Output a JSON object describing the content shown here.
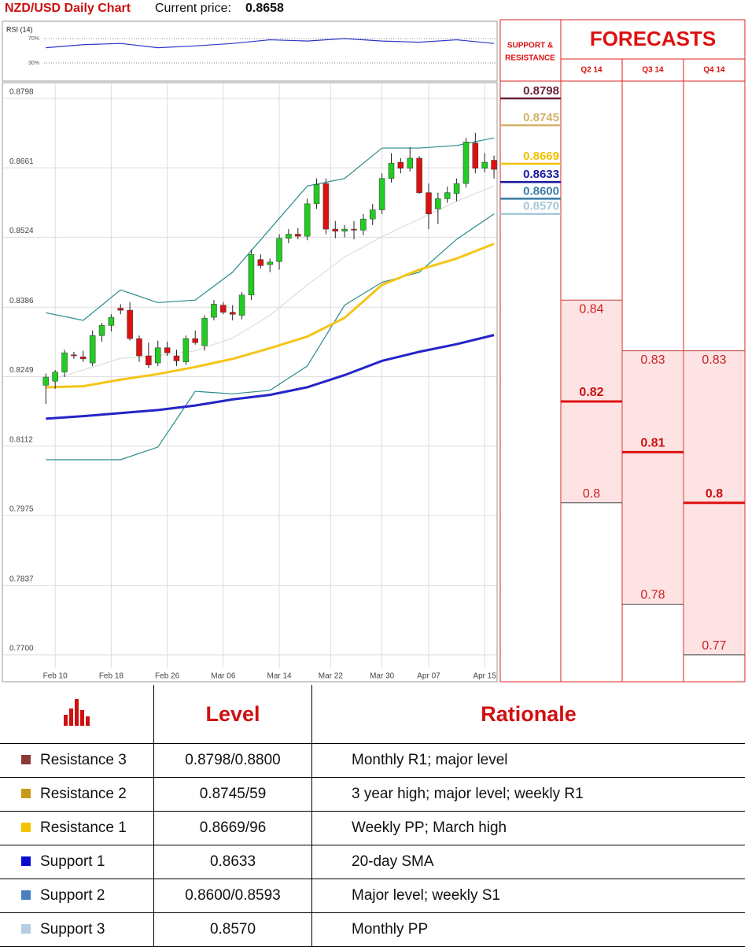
{
  "header": {
    "title": "NZD/USD Daily Chart",
    "price_label": "Current price:",
    "price": 0.8658
  },
  "chart_data": [
    {
      "type": "line",
      "title": "RSI (14)",
      "color": "#2a35c8",
      "x": [
        0,
        4,
        8,
        12,
        16,
        20,
        24,
        28,
        32,
        36,
        40,
        44,
        48
      ],
      "values": [
        55,
        60,
        62,
        55,
        58,
        62,
        68,
        66,
        70,
        66,
        64,
        68,
        62
      ],
      "xlim": [
        -0.7,
        48.5
      ],
      "ylim": [
        10,
        90
      ],
      "yticks": [
        {
          "value": 70,
          "label": "70%"
        },
        {
          "value": 30,
          "label": "30%"
        }
      ],
      "grid": true
    },
    {
      "type": "candlestick",
      "up_color": "#22cc22",
      "down_color": "#dd1111",
      "x": [
        0,
        1,
        2,
        3,
        4,
        5,
        6,
        7,
        8,
        9,
        10,
        11,
        12,
        13,
        14,
        15,
        16,
        17,
        18,
        19,
        20,
        21,
        22,
        23,
        24,
        25,
        26,
        27,
        28,
        29,
        30,
        31,
        32,
        33,
        34,
        35,
        36,
        37,
        38,
        39,
        40,
        41,
        42,
        43,
        44,
        45,
        46,
        47,
        48
      ],
      "open": [
        0.8232,
        0.824,
        0.8258,
        0.8292,
        0.8288,
        0.8276,
        0.833,
        0.835,
        0.8384,
        0.838,
        0.8324,
        0.829,
        0.8276,
        0.8306,
        0.829,
        0.8278,
        0.8324,
        0.831,
        0.8366,
        0.839,
        0.8376,
        0.837,
        0.841,
        0.848,
        0.847,
        0.8476,
        0.8522,
        0.853,
        0.8526,
        0.859,
        0.863,
        0.854,
        0.8536,
        0.854,
        0.8538,
        0.856,
        0.8578,
        0.864,
        0.8672,
        0.866,
        0.868,
        0.8612,
        0.858,
        0.86,
        0.861,
        0.863,
        0.871,
        0.866,
        0.8676
      ],
      "high": [
        0.8255,
        0.8262,
        0.8302,
        0.8298,
        0.83,
        0.834,
        0.8355,
        0.8372,
        0.8392,
        0.8396,
        0.833,
        0.8316,
        0.832,
        0.8318,
        0.8302,
        0.833,
        0.834,
        0.837,
        0.84,
        0.8396,
        0.839,
        0.8416,
        0.85,
        0.849,
        0.8482,
        0.853,
        0.854,
        0.8542,
        0.86,
        0.864,
        0.864,
        0.8556,
        0.8548,
        0.8556,
        0.857,
        0.859,
        0.865,
        0.869,
        0.868,
        0.8702,
        0.8684,
        0.863,
        0.8612,
        0.8624,
        0.864,
        0.872,
        0.873,
        0.869,
        0.8685
      ],
      "low": [
        0.8195,
        0.8225,
        0.8248,
        0.8284,
        0.8278,
        0.827,
        0.8318,
        0.8338,
        0.8372,
        0.832,
        0.8278,
        0.8266,
        0.827,
        0.829,
        0.827,
        0.8272,
        0.8312,
        0.83,
        0.836,
        0.8372,
        0.836,
        0.8362,
        0.84,
        0.8462,
        0.8455,
        0.846,
        0.8512,
        0.852,
        0.8518,
        0.858,
        0.853,
        0.8522,
        0.8524,
        0.852,
        0.8528,
        0.8548,
        0.857,
        0.8632,
        0.865,
        0.8654,
        0.861,
        0.854,
        0.855,
        0.8592,
        0.8595,
        0.8622,
        0.865,
        0.8652,
        0.864
      ],
      "close": [
        0.8248,
        0.8258,
        0.8296,
        0.829,
        0.8284,
        0.833,
        0.835,
        0.8366,
        0.838,
        0.8324,
        0.829,
        0.8272,
        0.8306,
        0.8296,
        0.828,
        0.8324,
        0.8316,
        0.8364,
        0.8392,
        0.8376,
        0.8372,
        0.841,
        0.849,
        0.8468,
        0.8475,
        0.8522,
        0.853,
        0.8526,
        0.859,
        0.8628,
        0.854,
        0.8536,
        0.854,
        0.8538,
        0.856,
        0.8578,
        0.864,
        0.867,
        0.866,
        0.868,
        0.8612,
        0.857,
        0.86,
        0.8612,
        0.863,
        0.8712,
        0.866,
        0.8672,
        0.8658
      ],
      "line_x": [
        0,
        4,
        8,
        12,
        16,
        20,
        24,
        28,
        32,
        36,
        40,
        44,
        48
      ],
      "lines": [
        {
          "color": "#2a8a8a",
          "values": [
            0.8375,
            0.836,
            0.842,
            0.8395,
            0.84,
            0.8455,
            0.854,
            0.8625,
            0.864,
            0.87,
            0.87,
            0.8705,
            0.872
          ]
        },
        {
          "color": "#2a8a8a",
          "values": [
            0.8085,
            0.8085,
            0.8085,
            0.811,
            0.822,
            0.8215,
            0.8222,
            0.827,
            0.839,
            0.8435,
            0.8455,
            0.852,
            0.857
          ]
        },
        {
          "color": "#dddddd",
          "values": [
            0.824,
            0.8262,
            0.8285,
            0.829,
            0.83,
            0.8325,
            0.837,
            0.843,
            0.8485,
            0.8525,
            0.856,
            0.8595,
            0.8625
          ]
        },
        {
          "color": "#f5c518",
          "values": [
            0.8228,
            0.823,
            0.8243,
            0.8254,
            0.8268,
            0.8284,
            0.8305,
            0.8328,
            0.8365,
            0.843,
            0.846,
            0.8482,
            0.8511
          ]
        },
        {
          "color": "#2424c8",
          "values": [
            0.8166,
            0.8171,
            0.8177,
            0.8183,
            0.8192,
            0.8204,
            0.8213,
            0.8228,
            0.8252,
            0.828,
            0.8298,
            0.8313,
            0.8331
          ]
        }
      ],
      "xlim": [
        -0.7,
        48.5
      ],
      "ylim": [
        0.7647,
        0.8829
      ],
      "yticks": [
        0.8798,
        0.8661,
        0.8524,
        0.8386,
        0.8249,
        0.8112,
        0.7975,
        0.7837,
        {
          "value": 0.77,
          "label": "0.7700"
        }
      ],
      "xticks": [
        {
          "value": 1,
          "label": "Feb 10"
        },
        {
          "value": 7,
          "label": "Feb 18"
        },
        {
          "value": 13,
          "label": "Feb 26"
        },
        {
          "value": 19,
          "label": "Mar 06"
        },
        {
          "value": 25,
          "label": "Mar 14"
        },
        {
          "value": 30.5,
          "label": "Mar 22"
        },
        {
          "value": 36,
          "label": "Mar 30"
        },
        {
          "value": 41,
          "label": "Apr 07"
        },
        {
          "value": 47,
          "label": "Apr 15"
        }
      ],
      "grid": true
    },
    {
      "type": "levels",
      "title_lines": [
        "SUPPORT &",
        "RESISTANCE"
      ],
      "ylim": [
        0.7647,
        0.8829
      ],
      "levels": [
        0.8798,
        0.8745,
        0.8669,
        0.8633,
        {
          "value": 0.86,
          "label": "0.8600"
        },
        {
          "value": 0.857,
          "label": "0.8570"
        }
      ],
      "colors": [
        "#6b1f3a",
        "#d4b06a",
        "#f0c000",
        "#1a1aa0",
        "#3a7ca5",
        "#a8c8d8"
      ]
    },
    {
      "type": "range",
      "title": "FORECASTS",
      "ylim": [
        0.7647,
        0.8829
      ],
      "categories": [
        "Q2 14",
        "Q3 14",
        "Q4 14"
      ],
      "high": [
        0.84,
        0.83,
        0.83
      ],
      "mid": [
        0.82,
        0.81,
        0.8
      ],
      "low": [
        0.8,
        0.78,
        0.77
      ]
    }
  ],
  "table": {
    "headers": [
      "Level",
      "Rationale"
    ],
    "rows": [
      [
        "Resistance 3",
        "0.8798/0.8800",
        "Monthly R1; major level"
      ],
      [
        "Resistance 2",
        "0.8745/59",
        "3 year high; major level; weekly R1"
      ],
      [
        "Resistance 1",
        "0.8669/96",
        "Weekly PP; March high"
      ],
      [
        "Support 1",
        "0.8633",
        "20-day SMA"
      ],
      [
        "Support 2",
        "0.8600/0.8593",
        "Major level; weekly S1"
      ],
      [
        "Support 3",
        "0.8570",
        "Monthly PP"
      ]
    ],
    "colors": [
      "#8b3a3a",
      "#c89a1a",
      "#f5c400",
      "#0a0ad0",
      "#4a7fc0",
      "#b8cce4"
    ]
  }
}
